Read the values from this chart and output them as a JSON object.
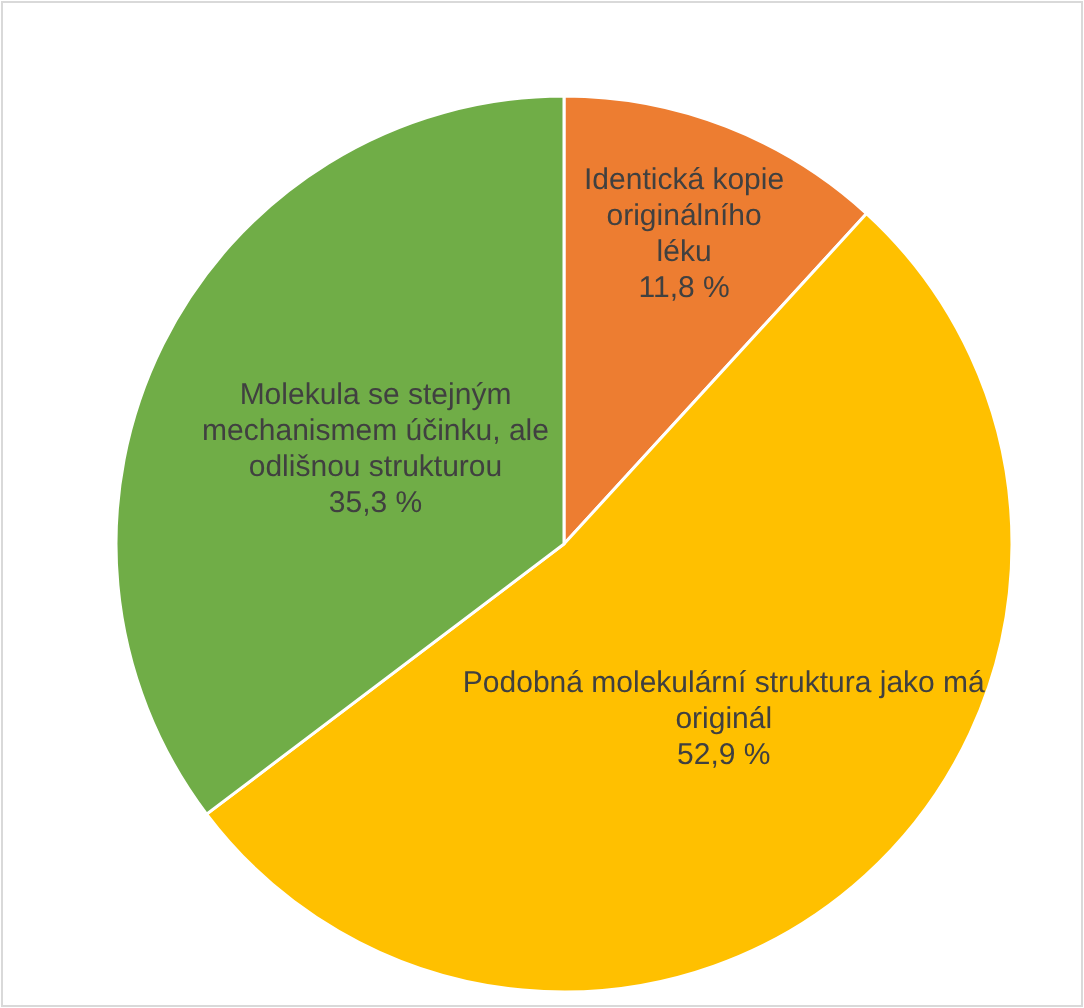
{
  "chart_data": {
    "type": "pie",
    "categories": [
      "Identická kopie originálního léku",
      "Podobná molekulární struktura jako má originál",
      "Molekula se stejným mechanismem účinku, ale odlišnou strukturou"
    ],
    "values": [
      11.8,
      52.9,
      35.3
    ],
    "value_labels": [
      "11,8 %",
      "52,9 %",
      "35,3 %"
    ],
    "colors": [
      "#ed7d31",
      "#ffc000",
      "#70ad47"
    ]
  }
}
